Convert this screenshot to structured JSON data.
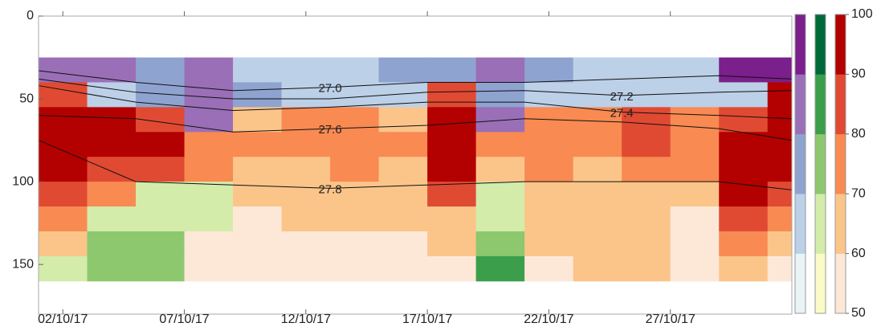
{
  "chart_data": {
    "type": "contour",
    "xlim": [
      -1,
      30
    ],
    "ylim": [
      0,
      180
    ],
    "y_reversed": true,
    "xticks": [
      {
        "value": 0,
        "label": "02/10/17"
      },
      {
        "value": 5,
        "label": "07/10/17"
      },
      {
        "value": 10,
        "label": "12/10/17"
      },
      {
        "value": 15,
        "label": "17/10/17"
      },
      {
        "value": 20,
        "label": "22/10/17"
      },
      {
        "value": 25,
        "label": "27/10/17"
      }
    ],
    "yticks": [
      0,
      50,
      100,
      150
    ],
    "colorbars": [
      {
        "colors": [
          "#eaf3f6",
          "#bcd0e8",
          "#8fa3d0",
          "#9a6fb7",
          "#7b1f8c"
        ]
      },
      {
        "colors": [
          "#fbfbc8",
          "#d4ecaa",
          "#8dc86e",
          "#3b9e4a",
          "#00693a"
        ]
      },
      {
        "colors": [
          "#fde8d8",
          "#fbc58a",
          "#f88a52",
          "#e04a32",
          "#b30000"
        ]
      }
    ],
    "clim": [
      50,
      100
    ],
    "cticks": [
      50,
      60,
      70,
      80,
      90,
      100
    ],
    "field": {
      "x": [
        -1,
        1,
        3,
        5,
        7,
        9,
        11,
        13,
        15,
        17,
        19,
        21,
        23,
        25,
        27,
        29,
        30
      ],
      "y": [
        25,
        40,
        55,
        70,
        85,
        100,
        115,
        130,
        145,
        160
      ],
      "map": [
        [
          0,
          0,
          0,
          0,
          0,
          0,
          0,
          0,
          0,
          0,
          0,
          0,
          0,
          0,
          0,
          0
        ],
        [
          2,
          0,
          0,
          0,
          0,
          0,
          0,
          0,
          2,
          0,
          0,
          0,
          0,
          0,
          0,
          2
        ],
        [
          2,
          2,
          2,
          0,
          2,
          2,
          2,
          2,
          2,
          0,
          2,
          2,
          2,
          2,
          2,
          2
        ],
        [
          2,
          2,
          2,
          2,
          2,
          2,
          2,
          2,
          2,
          2,
          2,
          2,
          2,
          2,
          2,
          2
        ],
        [
          2,
          2,
          2,
          2,
          2,
          2,
          2,
          2,
          2,
          2,
          2,
          2,
          2,
          2,
          2,
          2
        ],
        [
          2,
          2,
          1,
          1,
          2,
          2,
          2,
          2,
          2,
          1,
          2,
          2,
          2,
          2,
          2,
          2
        ],
        [
          2,
          1,
          1,
          1,
          2,
          2,
          2,
          2,
          2,
          1,
          2,
          2,
          2,
          2,
          2,
          2
        ],
        [
          2,
          1,
          1,
          2,
          2,
          2,
          2,
          2,
          2,
          1,
          2,
          2,
          2,
          2,
          2,
          2
        ],
        [
          1,
          1,
          1,
          2,
          2,
          2,
          2,
          2,
          2,
          1,
          2,
          2,
          2,
          2,
          2,
          2
        ]
      ],
      "z": [
        [
          80,
          80,
          70,
          80,
          60,
          60,
          60,
          70,
          70,
          80,
          70,
          60,
          60,
          60,
          90,
          90
        ],
        [
          80,
          60,
          70,
          80,
          70,
          60,
          60,
          60,
          80,
          70,
          60,
          60,
          60,
          60,
          60,
          90
        ],
        [
          90,
          90,
          80,
          80,
          60,
          70,
          70,
          60,
          90,
          80,
          70,
          70,
          80,
          70,
          80,
          90
        ],
        [
          90,
          90,
          90,
          70,
          70,
          70,
          70,
          70,
          90,
          70,
          70,
          70,
          80,
          70,
          90,
          90
        ],
        [
          90,
          80,
          80,
          70,
          60,
          60,
          70,
          60,
          90,
          60,
          70,
          60,
          70,
          70,
          90,
          90
        ],
        [
          80,
          70,
          60,
          60,
          60,
          60,
          60,
          60,
          80,
          60,
          60,
          60,
          60,
          60,
          90,
          80
        ],
        [
          70,
          60,
          60,
          60,
          50,
          60,
          60,
          60,
          60,
          60,
          60,
          60,
          60,
          50,
          80,
          70
        ],
        [
          60,
          70,
          70,
          50,
          50,
          50,
          50,
          50,
          60,
          70,
          60,
          60,
          60,
          50,
          70,
          60
        ],
        [
          60,
          70,
          70,
          50,
          50,
          50,
          50,
          50,
          50,
          80,
          50,
          60,
          60,
          50,
          60,
          50
        ]
      ]
    },
    "contour_x": [
      -1,
      3,
      7,
      11,
      15,
      19,
      23,
      27,
      30
    ],
    "contours": [
      {
        "level": {
          "value": 27,
          "label": "27.0"
        },
        "y": [
          33,
          40,
          45,
          43,
          40,
          40,
          38,
          36,
          38
        ]
      },
      {
        "level": {
          "value": 27.2,
          "label": "27.2"
        },
        "y": [
          38,
          46,
          50,
          50,
          46,
          45,
          48,
          46,
          45
        ]
      },
      {
        "level": {
          "value": 27.4,
          "label": "27.4"
        },
        "y": [
          42,
          52,
          57,
          55,
          52,
          52,
          58,
          60,
          62
        ]
      },
      {
        "level": {
          "value": 27.6,
          "label": "27.6"
        },
        "y": [
          60,
          62,
          70,
          68,
          66,
          62,
          64,
          68,
          75
        ]
      },
      {
        "level": {
          "value": 27.8,
          "label": "27.8"
        },
        "y": [
          75,
          100,
          102,
          104,
          102,
          100,
          100,
          100,
          105
        ]
      }
    ]
  }
}
